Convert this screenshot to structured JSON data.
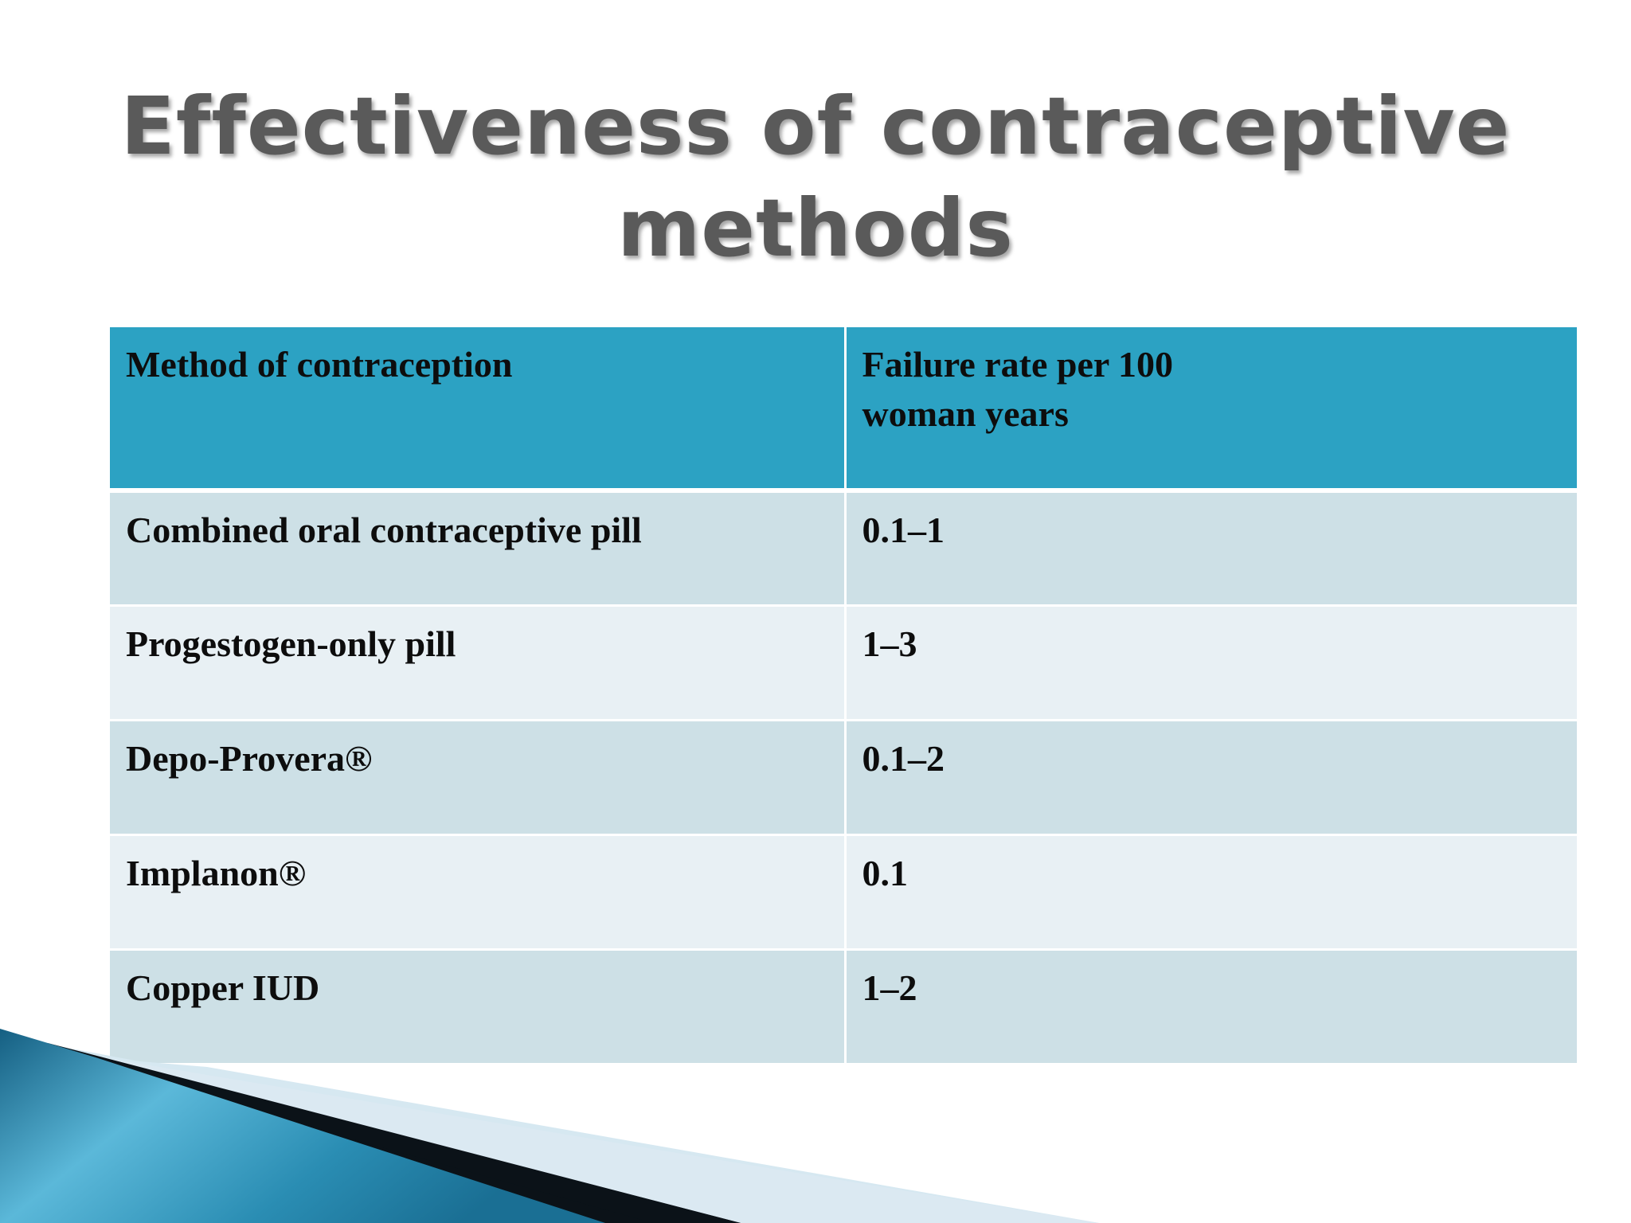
{
  "title": {
    "line1": "Effectiveness of contraceptive",
    "line2": "methods"
  },
  "table": {
    "headers": [
      "Method of contraception",
      "Failure rate per 100\nwoman years"
    ],
    "header_col2_line1": "Failure rate per 100",
    "header_col2_line2": "woman years",
    "rows": [
      {
        "method": "Combined oral contraceptive pill",
        "rate": "0.1–1"
      },
      {
        "method": "Progestogen-only pill",
        "rate": "1–3"
      },
      {
        "method": "Depo-Provera®",
        "rate": "0.1–2"
      },
      {
        "method": "Implanon®",
        "rate": "0.1"
      },
      {
        "method": "Copper IUD",
        "rate": "1–2"
      }
    ]
  },
  "colors": {
    "header_bg": "#2ca2c3",
    "row_odd_bg": "#cde0e6",
    "row_even_bg": "#e8f0f4",
    "title_color": "#5a5a5a",
    "swoosh_dark": "#0b1218",
    "swoosh_blue": "#1e7fa3",
    "swoosh_light": "#d6e8f1"
  }
}
